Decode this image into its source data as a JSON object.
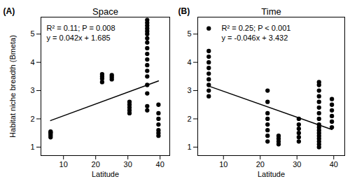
{
  "chart_data": [
    {
      "type": "scatter",
      "panel_label": "(A)",
      "title": "Space",
      "x_label": "Latitude",
      "y_label": "Habitat niche breadth (Bmeta)",
      "xlim": [
        3,
        43
      ],
      "xticks": [
        10,
        20,
        30,
        40
      ],
      "ylim": [
        0.7,
        5.6
      ],
      "yticks": [
        1,
        2,
        3,
        4,
        5
      ],
      "grid": false,
      "annotations": [
        "R² = 0.11; P = 0.008",
        "y = 0.042x + 1.685"
      ],
      "series": [
        {
          "type": "scatter",
          "marker": "circle",
          "color": "#000000",
          "x": [
            6,
            6,
            6,
            6,
            6,
            22,
            22,
            22,
            22,
            25,
            25,
            25,
            30.5,
            30.5,
            30.5,
            30.5,
            30.5,
            36,
            36,
            36,
            36,
            36,
            36,
            36,
            36,
            36,
            36,
            36,
            36,
            36,
            36,
            36,
            36,
            36,
            36,
            39.5,
            39.5,
            39.5,
            39.5,
            39.5,
            39.5,
            39.5
          ],
          "values": [
            1.35,
            1.42,
            1.48,
            1.52,
            1.55,
            3.3,
            3.42,
            3.5,
            3.58,
            3.4,
            3.48,
            3.55,
            2.2,
            2.3,
            2.4,
            2.5,
            2.6,
            2.3,
            2.45,
            2.9,
            3.2,
            3.5,
            3.7,
            3.9,
            4.1,
            4.3,
            4.5,
            4.7,
            4.85,
            5.0,
            5.1,
            5.2,
            5.3,
            5.4,
            5.5,
            1.4,
            1.5,
            1.6,
            1.8,
            2.0,
            2.2,
            2.5
          ]
        },
        {
          "type": "line",
          "line_style": "solid",
          "color": "#000000",
          "x": [
            6,
            39.5
          ],
          "values": [
            1.94,
            3.34
          ]
        }
      ]
    },
    {
      "type": "scatter",
      "panel_label": "(B)",
      "title": "Time",
      "x_label": "Latitude",
      "xlim": [
        3,
        43
      ],
      "xticks": [
        10,
        20,
        30,
        40
      ],
      "ylim": [
        0.7,
        5.6
      ],
      "yticks": [
        1,
        2,
        3,
        4,
        5
      ],
      "grid": false,
      "annotations": [
        "R² = 0.25; P < 0.001",
        "y = -0.046x + 3.432"
      ],
      "series": [
        {
          "type": "scatter",
          "marker": "circle",
          "color": "#000000",
          "x": [
            6,
            6,
            6,
            6,
            6,
            6,
            6,
            6,
            6,
            6,
            22,
            22,
            22,
            22,
            22,
            22,
            22,
            22,
            25,
            25,
            25,
            25,
            30.5,
            30.5,
            30.5,
            30.5,
            30.5,
            30.5,
            36,
            36,
            36,
            36,
            36,
            36,
            36,
            36,
            36,
            36,
            36,
            36,
            36,
            36,
            36,
            36,
            36,
            39.5,
            39.5,
            39.5,
            39.5,
            39.5,
            39.5
          ],
          "values": [
            2.8,
            3.0,
            3.2,
            3.4,
            3.6,
            3.8,
            4.0,
            4.2,
            4.4,
            5.2,
            1.2,
            1.4,
            1.6,
            1.8,
            2.0,
            2.2,
            2.6,
            3.0,
            1.1,
            1.2,
            1.3,
            1.4,
            1.2,
            1.35,
            1.5,
            1.65,
            1.8,
            2.0,
            1.0,
            1.1,
            1.2,
            1.3,
            1.4,
            1.5,
            1.6,
            1.7,
            1.8,
            2.0,
            2.2,
            2.4,
            2.6,
            2.8,
            3.0,
            3.2,
            3.3,
            1.7,
            1.9,
            2.1,
            2.3,
            2.5,
            2.7
          ]
        },
        {
          "type": "line",
          "line_style": "solid",
          "color": "#000000",
          "x": [
            6,
            39.5
          ],
          "values": [
            3.16,
            1.62
          ]
        }
      ]
    }
  ]
}
